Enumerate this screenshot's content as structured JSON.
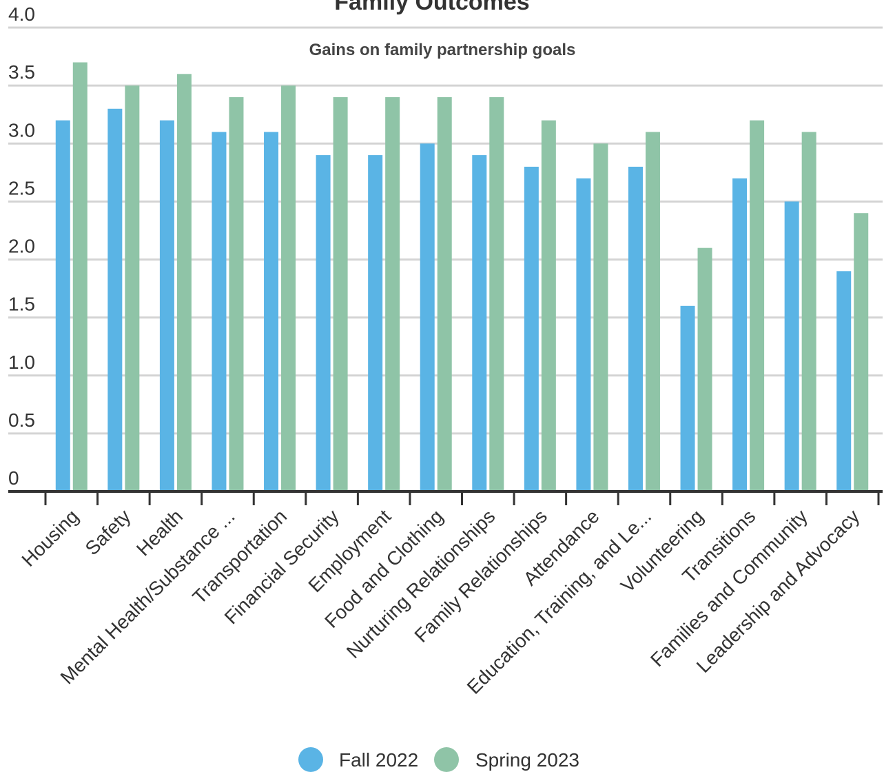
{
  "chart_data": {
    "type": "bar",
    "title": "Family Outcomes",
    "subtitle": "Gains on family partnership goals",
    "xlabel": "",
    "ylabel": "",
    "ylim": [
      0,
      4
    ],
    "yticks": [
      0,
      0.5,
      1,
      1.5,
      2,
      2.5,
      3,
      3.5,
      4
    ],
    "ytick_labels": [
      "0",
      "0.5",
      "1.0",
      "1.5",
      "2.0",
      "2.5",
      "3.0",
      "3.5",
      "4.0"
    ],
    "grid": true,
    "legend_position": "bottom-center",
    "categories": [
      "Housing",
      "Safety",
      "Health",
      "Mental Health/Substance ...",
      "Transportation",
      "Financial Security",
      "Employment",
      "Food and Clothing",
      "Nurturing Relationships",
      "Family Relationships",
      "Attendance",
      "Education, Training, and Le...",
      "Volunteering",
      "Transitions",
      "Families and Community",
      "Leadership and Advocacy"
    ],
    "series": [
      {
        "name": "Fall 2022",
        "color": "#5ab4e5",
        "values": [
          3.2,
          3.3,
          3.2,
          3.1,
          3.1,
          2.9,
          2.9,
          3.0,
          2.9,
          2.8,
          2.7,
          2.8,
          1.6,
          2.7,
          2.5,
          1.9
        ]
      },
      {
        "name": "Spring 2023",
        "color": "#8fc4a7",
        "values": [
          3.7,
          3.5,
          3.6,
          3.4,
          3.5,
          3.4,
          3.4,
          3.4,
          3.4,
          3.2,
          3.0,
          3.1,
          2.1,
          3.2,
          3.1,
          2.4
        ]
      }
    ]
  }
}
